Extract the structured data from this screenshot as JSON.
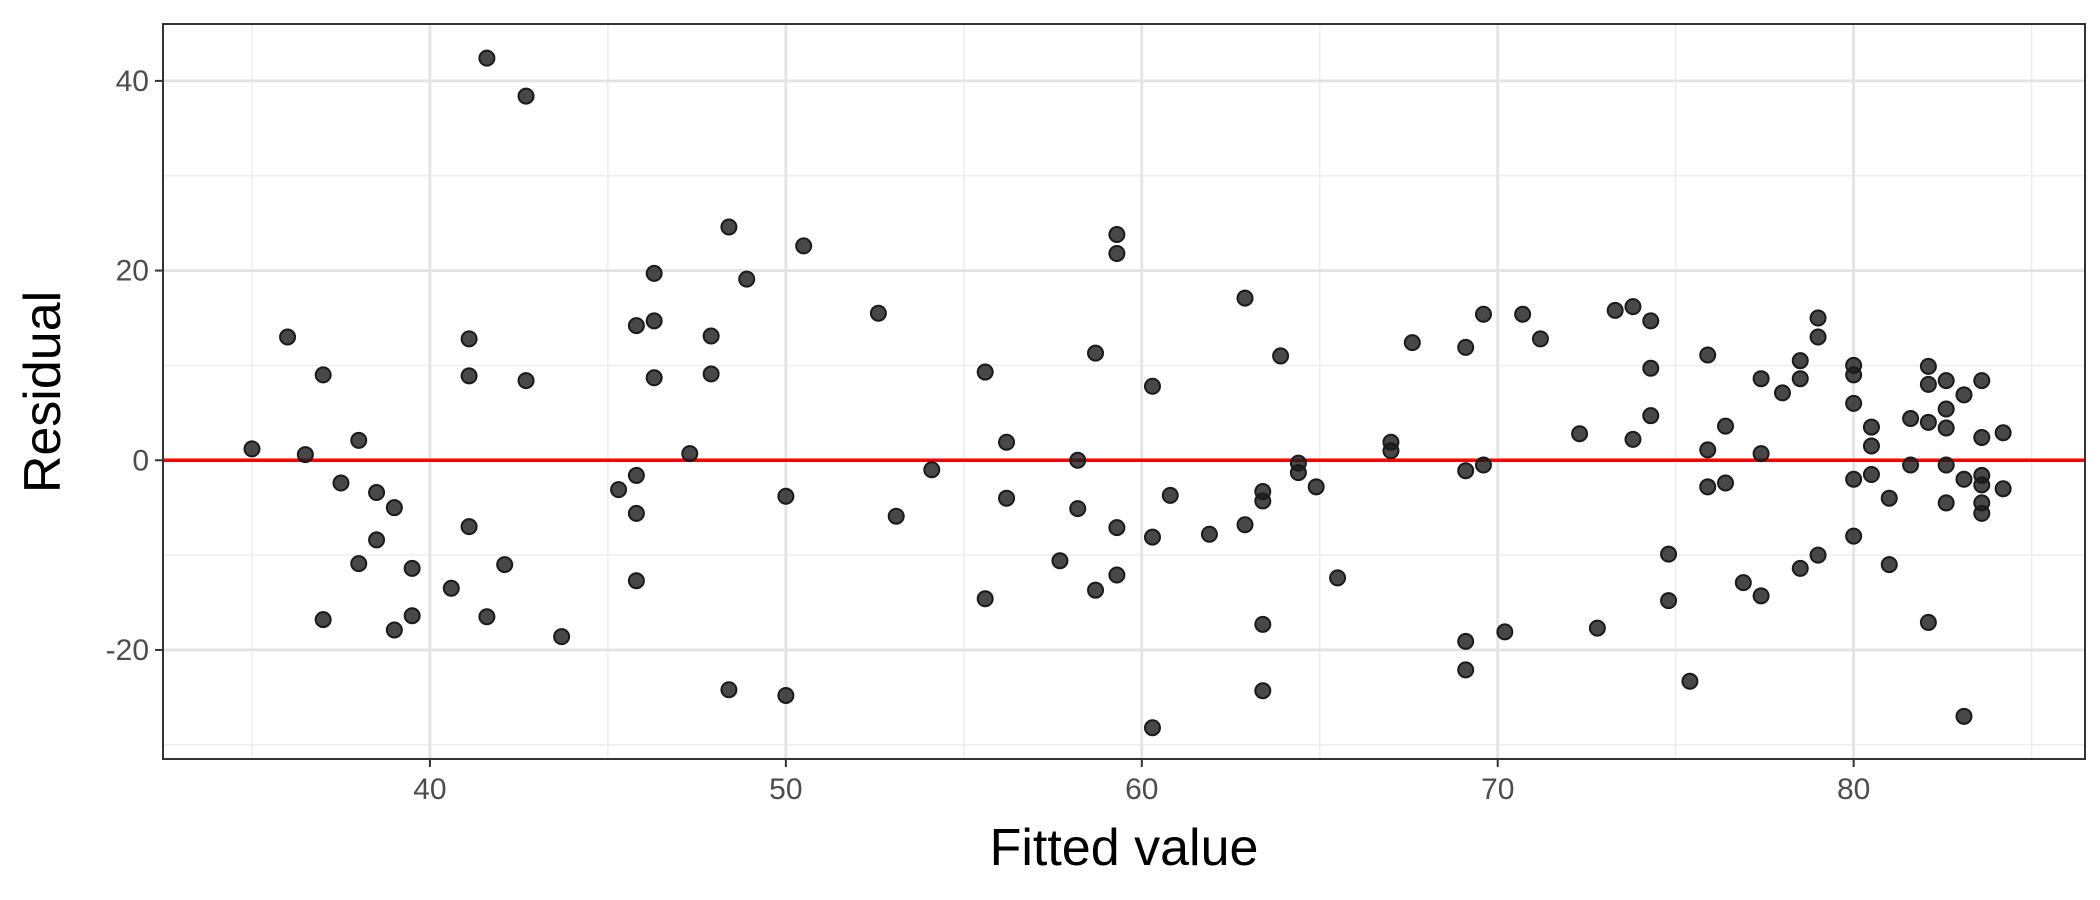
{
  "chart_data": {
    "type": "scatter",
    "title": "",
    "xlabel": "Fitted value",
    "ylabel": "Residual",
    "xlim": [
      32.5,
      86.5
    ],
    "ylim": [
      -31.5,
      46
    ],
    "x_ticks": [
      40,
      50,
      60,
      70,
      80
    ],
    "y_ticks": [
      -20,
      0,
      20,
      40
    ],
    "x_tick_labels": [
      "40",
      "50",
      "60",
      "70",
      "80"
    ],
    "y_tick_labels": [
      "-20",
      "0",
      "20",
      "40"
    ],
    "grid": true,
    "theme": "bw",
    "reference_line": {
      "y": 0,
      "color": "#ff0000"
    },
    "point_color": "#1a1a1a",
    "points": [
      [
        35.0,
        1.2
      ],
      [
        36.0,
        13.0
      ],
      [
        36.5,
        0.6
      ],
      [
        37.0,
        9.0
      ],
      [
        37.0,
        -16.8
      ],
      [
        37.5,
        -2.4
      ],
      [
        38.0,
        2.1
      ],
      [
        38.0,
        -10.9
      ],
      [
        38.5,
        -3.4
      ],
      [
        38.5,
        -8.4
      ],
      [
        39.0,
        -5.0
      ],
      [
        39.0,
        -17.9
      ],
      [
        39.5,
        -11.4
      ],
      [
        39.5,
        -16.4
      ],
      [
        40.6,
        -13.5
      ],
      [
        41.1,
        12.8
      ],
      [
        41.1,
        8.9
      ],
      [
        41.1,
        -7.0
      ],
      [
        41.6,
        42.4
      ],
      [
        41.6,
        -16.5
      ],
      [
        42.1,
        -11.0
      ],
      [
        42.7,
        38.4
      ],
      [
        42.7,
        8.4
      ],
      [
        43.7,
        -18.6
      ],
      [
        45.3,
        -3.1
      ],
      [
        45.8,
        14.2
      ],
      [
        45.8,
        -1.6
      ],
      [
        45.8,
        -5.6
      ],
      [
        45.8,
        -12.7
      ],
      [
        46.3,
        19.7
      ],
      [
        46.3,
        14.7
      ],
      [
        46.3,
        8.7
      ],
      [
        47.3,
        0.7
      ],
      [
        47.9,
        13.1
      ],
      [
        47.9,
        9.1
      ],
      [
        48.4,
        24.6
      ],
      [
        48.4,
        -24.2
      ],
      [
        48.9,
        19.1
      ],
      [
        50.0,
        -3.8
      ],
      [
        50.0,
        -24.8
      ],
      [
        50.5,
        22.6
      ],
      [
        52.6,
        15.5
      ],
      [
        53.1,
        -5.9
      ],
      [
        54.1,
        -1.0
      ],
      [
        55.6,
        9.3
      ],
      [
        55.6,
        -14.6
      ],
      [
        56.2,
        1.9
      ],
      [
        56.2,
        -4.0
      ],
      [
        57.7,
        -10.6
      ],
      [
        58.2,
        0.0
      ],
      [
        58.2,
        -5.1
      ],
      [
        58.7,
        11.3
      ],
      [
        58.7,
        -13.7
      ],
      [
        59.3,
        23.8
      ],
      [
        59.3,
        21.8
      ],
      [
        59.3,
        -7.1
      ],
      [
        59.3,
        -12.1
      ],
      [
        60.3,
        7.8
      ],
      [
        60.3,
        -8.1
      ],
      [
        60.3,
        -28.2
      ],
      [
        60.8,
        -3.7
      ],
      [
        61.9,
        -7.8
      ],
      [
        62.9,
        17.1
      ],
      [
        62.9,
        -6.8
      ],
      [
        63.4,
        -3.3
      ],
      [
        63.4,
        -4.3
      ],
      [
        63.4,
        -17.3
      ],
      [
        63.4,
        -24.3
      ],
      [
        63.9,
        11.0
      ],
      [
        64.4,
        -0.3
      ],
      [
        64.4,
        -1.3
      ],
      [
        64.9,
        -2.8
      ],
      [
        65.5,
        -12.4
      ],
      [
        67.0,
        1.9
      ],
      [
        67.0,
        1.0
      ],
      [
        67.6,
        12.4
      ],
      [
        69.1,
        11.9
      ],
      [
        69.1,
        -1.1
      ],
      [
        69.1,
        -19.1
      ],
      [
        69.1,
        -22.1
      ],
      [
        69.6,
        15.4
      ],
      [
        69.6,
        -0.5
      ],
      [
        70.2,
        -18.1
      ],
      [
        70.7,
        15.4
      ],
      [
        71.2,
        12.8
      ],
      [
        72.3,
        2.8
      ],
      [
        72.8,
        -17.7
      ],
      [
        73.3,
        15.8
      ],
      [
        73.8,
        16.2
      ],
      [
        73.8,
        2.2
      ],
      [
        74.3,
        14.7
      ],
      [
        74.3,
        9.7
      ],
      [
        74.3,
        4.7
      ],
      [
        74.8,
        -9.9
      ],
      [
        74.8,
        -14.8
      ],
      [
        75.4,
        -23.3
      ],
      [
        75.9,
        11.1
      ],
      [
        75.9,
        1.1
      ],
      [
        75.9,
        -2.8
      ],
      [
        76.4,
        3.6
      ],
      [
        76.4,
        -2.4
      ],
      [
        76.9,
        -12.9
      ],
      [
        77.4,
        8.6
      ],
      [
        77.4,
        0.7
      ],
      [
        77.4,
        -14.3
      ],
      [
        78.0,
        7.1
      ],
      [
        78.5,
        10.5
      ],
      [
        78.5,
        8.6
      ],
      [
        78.5,
        -11.4
      ],
      [
        79.0,
        15.0
      ],
      [
        79.0,
        13.0
      ],
      [
        79.0,
        -10.0
      ],
      [
        80.0,
        10.0
      ],
      [
        80.0,
        9.0
      ],
      [
        80.0,
        6.0
      ],
      [
        80.0,
        -2.0
      ],
      [
        80.0,
        -8.0
      ],
      [
        80.5,
        3.5
      ],
      [
        80.5,
        1.5
      ],
      [
        80.5,
        -1.5
      ],
      [
        81.0,
        -4.0
      ],
      [
        81.0,
        -11.0
      ],
      [
        81.6,
        4.4
      ],
      [
        81.6,
        -0.5
      ],
      [
        82.1,
        9.9
      ],
      [
        82.1,
        8.0
      ],
      [
        82.1,
        4.0
      ],
      [
        82.1,
        -17.1
      ],
      [
        82.6,
        8.4
      ],
      [
        82.6,
        5.4
      ],
      [
        82.6,
        3.4
      ],
      [
        82.6,
        -0.5
      ],
      [
        82.6,
        -4.5
      ],
      [
        83.1,
        6.9
      ],
      [
        83.1,
        -2.0
      ],
      [
        83.1,
        -27.0
      ],
      [
        83.6,
        8.4
      ],
      [
        83.6,
        2.4
      ],
      [
        83.6,
        -1.6
      ],
      [
        83.6,
        -2.6
      ],
      [
        83.6,
        -4.5
      ],
      [
        83.6,
        -5.6
      ],
      [
        84.2,
        2.9
      ],
      [
        84.2,
        -3.0
      ]
    ]
  }
}
